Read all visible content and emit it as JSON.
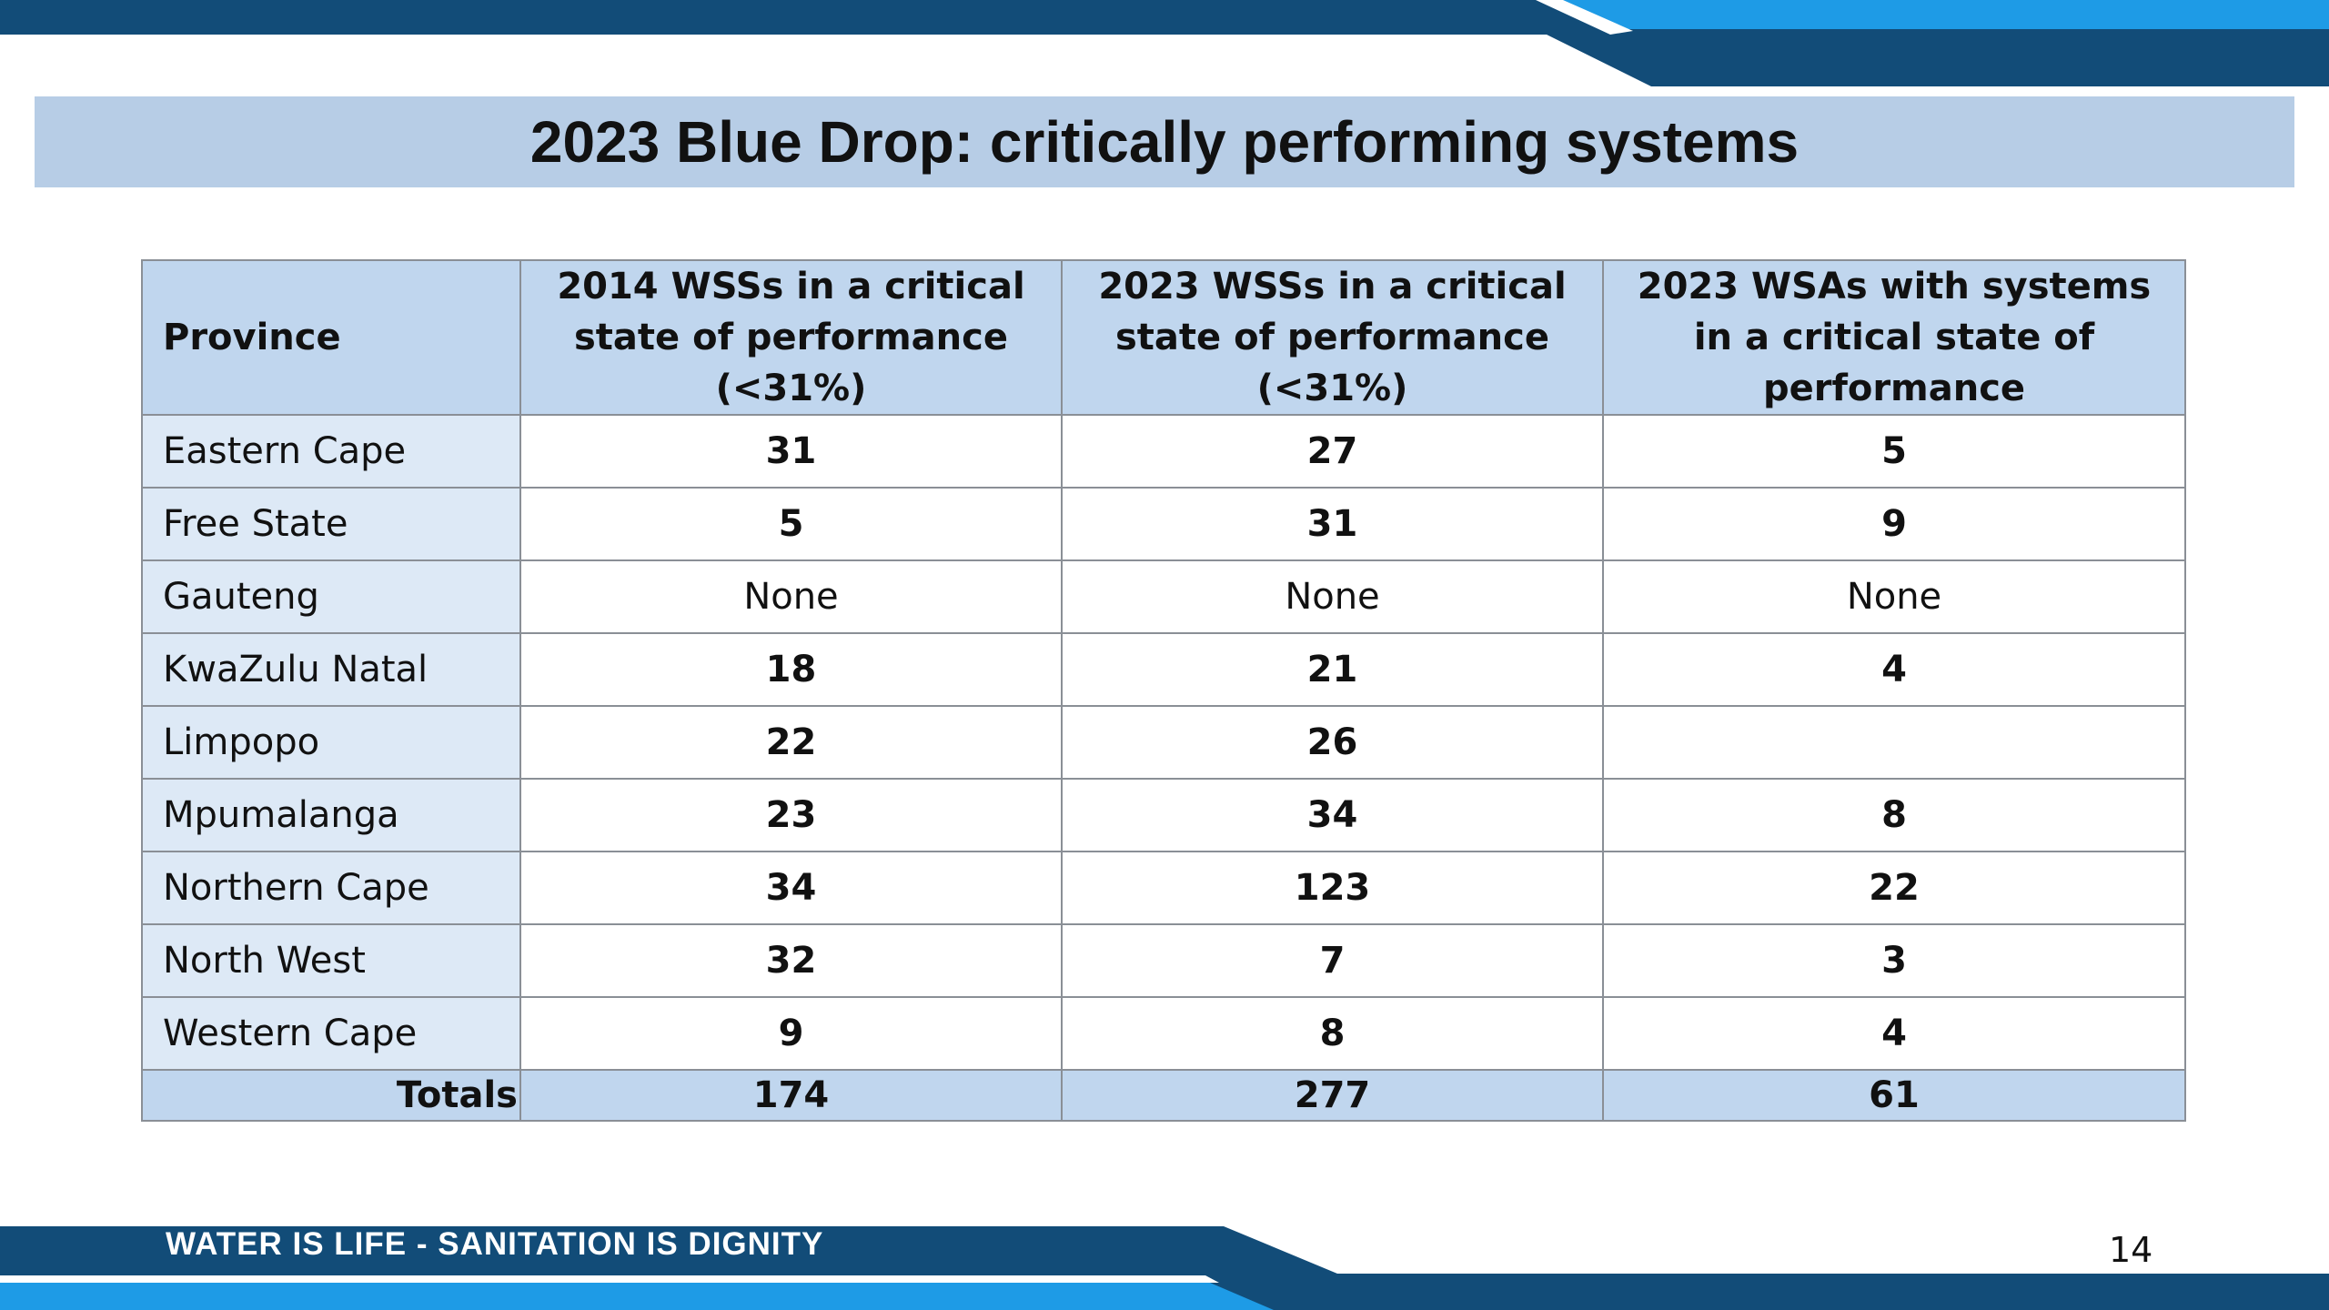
{
  "colors": {
    "dark_navy": "#124c78",
    "bright_blue": "#1e9be6",
    "title_band": "#b7cde6",
    "header_fill": "#c0d6ee",
    "province_fill": "#dde9f6"
  },
  "slide": {
    "title": "2023 Blue Drop: critically performing systems",
    "footer": "WATER IS LIFE - SANITATION IS DIGNITY",
    "page_number": "14"
  },
  "table": {
    "headers": {
      "province": "Province",
      "col1": "2014 WSSs in a critical state of performance (<31%)",
      "col2": "2023 WSSs in a critical state of performance (<31%)",
      "col3": "2023 WSAs with systems in a critical state of performance"
    },
    "rows": [
      {
        "province": "Eastern Cape",
        "c1": "31",
        "c2": "27",
        "c3": "5"
      },
      {
        "province": "Free State",
        "c1": "5",
        "c2": "31",
        "c3": "9"
      },
      {
        "province": "Gauteng",
        "c1": "None",
        "c2": "None",
        "c3": "None"
      },
      {
        "province": "KwaZulu Natal",
        "c1": "18",
        "c2": "21",
        "c3": "4"
      },
      {
        "province": "Limpopo",
        "c1": "22",
        "c2": "26",
        "c3": ""
      },
      {
        "province": "Mpumalanga",
        "c1": "23",
        "c2": "34",
        "c3": "8"
      },
      {
        "province": "Northern Cape",
        "c1": "34",
        "c2": "123",
        "c3": "22"
      },
      {
        "province": "North West",
        "c1": "32",
        "c2": "7",
        "c3": "3"
      },
      {
        "province": "Western Cape",
        "c1": "9",
        "c2": "8",
        "c3": "4"
      }
    ],
    "totals": {
      "label": "Totals",
      "c1": "174",
      "c2": "277",
      "c3": "61"
    }
  }
}
